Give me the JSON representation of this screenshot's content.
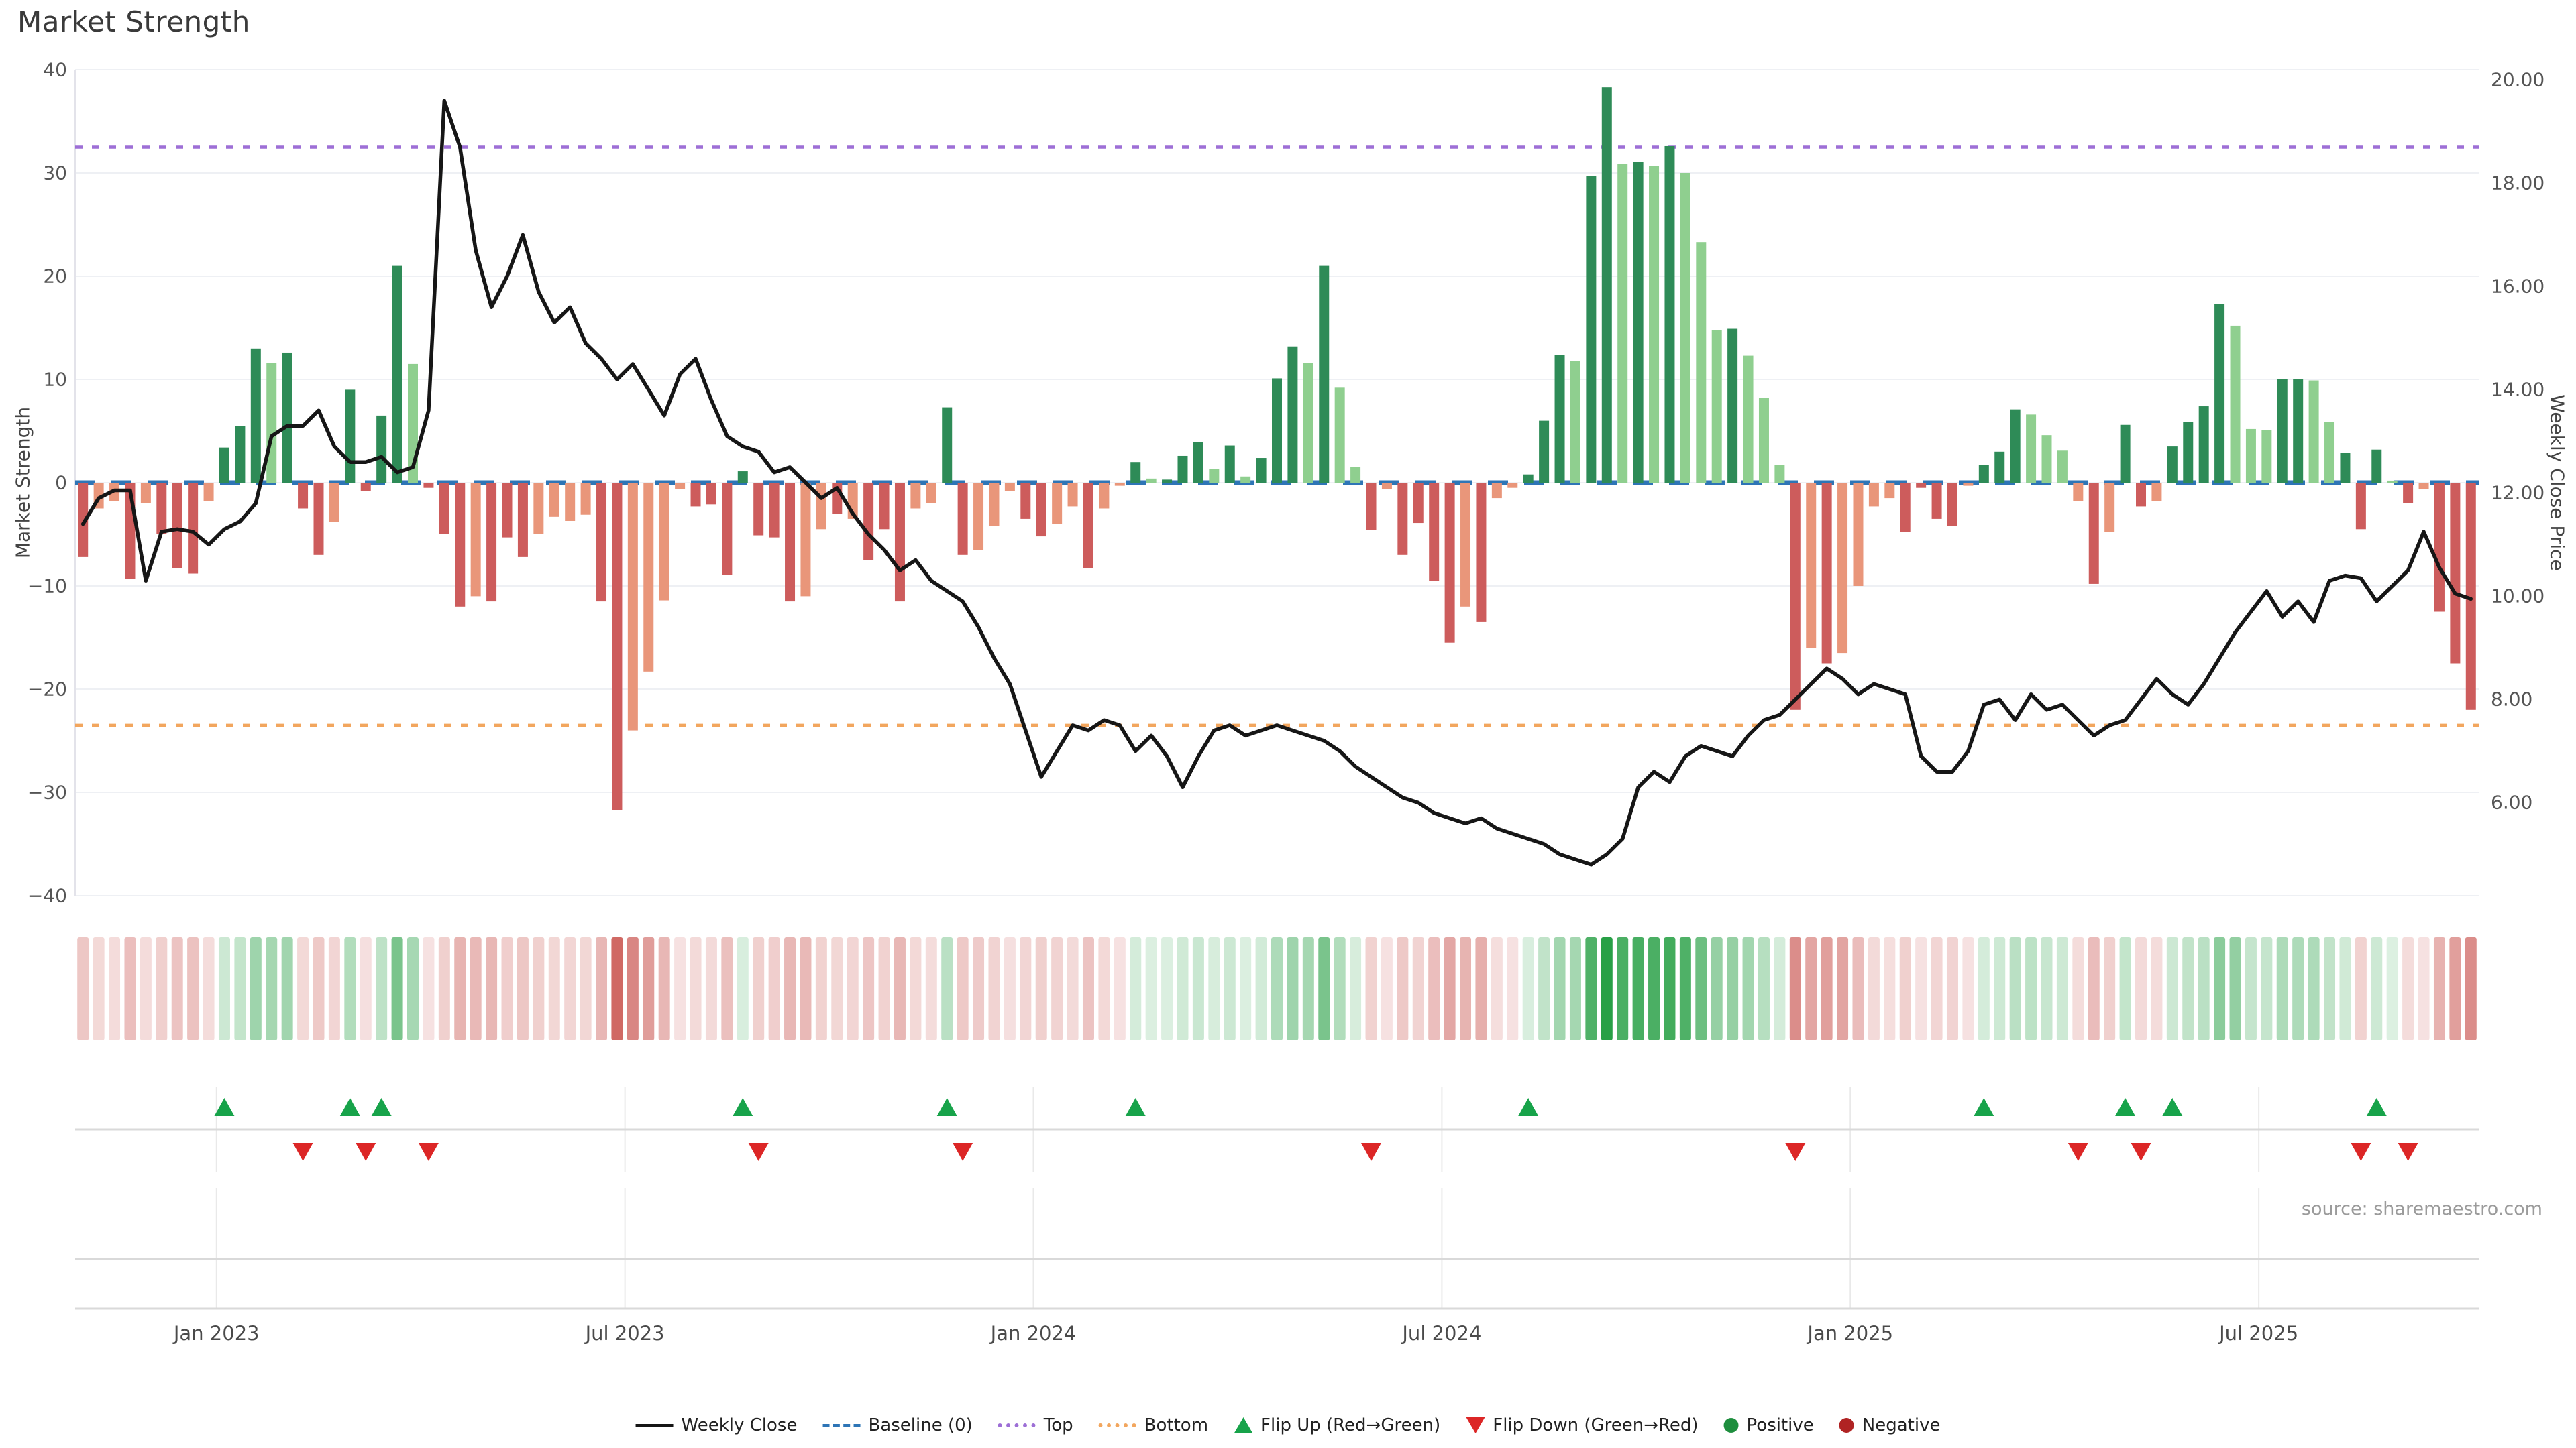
{
  "title": "Market Strength",
  "source": "source: sharemaestro.com",
  "axes": {
    "left_title": "Market Strength",
    "right_title": "Weekly Close Price",
    "left_ticks": [
      {
        "v": 40,
        "label": "40"
      },
      {
        "v": 30,
        "label": "30"
      },
      {
        "v": 20,
        "label": "20"
      },
      {
        "v": 10,
        "label": "10"
      },
      {
        "v": 0,
        "label": "0"
      },
      {
        "v": -10,
        "label": "−10"
      },
      {
        "v": -20,
        "label": "−20"
      },
      {
        "v": -30,
        "label": "−30"
      },
      {
        "v": -40,
        "label": "−40"
      }
    ],
    "right_ticks": [
      {
        "v": 20,
        "label": "20.00"
      },
      {
        "v": 18,
        "label": "18.00"
      },
      {
        "v": 16,
        "label": "16.00"
      },
      {
        "v": 14,
        "label": "14.00"
      },
      {
        "v": 12,
        "label": "12.00"
      },
      {
        "v": 10,
        "label": "10.00"
      },
      {
        "v": 8,
        "label": "8.00"
      },
      {
        "v": 6,
        "label": "6.00"
      }
    ],
    "x_ticks": [
      {
        "week": 9,
        "label": "Jan 2023"
      },
      {
        "week": 35,
        "label": "Jul 2023"
      },
      {
        "week": 61,
        "label": "Jan 2024"
      },
      {
        "week": 87,
        "label": "Jul 2024"
      },
      {
        "week": 113,
        "label": "Jan 2025"
      },
      {
        "week": 139,
        "label": "Jul 2025"
      }
    ]
  },
  "colors": {
    "bar_positive_strong": "#2e8b57",
    "bar_positive_weak": "#8fcf8f",
    "bar_negative_strong": "#cd5c5c",
    "bar_negative_weak": "#e9967a",
    "line": "#161616",
    "baseline": "#2e75b6",
    "top_line": "#9d6fd6",
    "bottom_line": "#f2a65e",
    "flip_up": "#17a34a",
    "flip_down": "#dc2626",
    "positive_dot": "#1e8e3e",
    "negative_dot": "#b02323",
    "grid": "#eef0f4",
    "axis_line": "#e3e3ea",
    "panel_line": "#d9d9d9",
    "vgrid": "#e9e9e9",
    "heat_pos": "40,160,70",
    "heat_neg": "200,80,75"
  },
  "legend": [
    {
      "label": "Weekly Close",
      "glyph": "line",
      "color": "#161616"
    },
    {
      "label": "Baseline (0)",
      "glyph": "dashed",
      "color": "#2e75b6"
    },
    {
      "label": "Top",
      "glyph": "dotted",
      "color": "#9d6fd6"
    },
    {
      "label": "Bottom",
      "glyph": "dotted",
      "color": "#f2a65e"
    },
    {
      "label": "Flip Up (Red→Green)",
      "glyph": "triangle-up",
      "color": "#17a34a"
    },
    {
      "label": "Flip Down (Green→Red)",
      "glyph": "triangle-down",
      "color": "#dc2626"
    },
    {
      "label": "Positive",
      "glyph": "circle",
      "color": "#1e8e3e"
    },
    {
      "label": "Negative",
      "glyph": "circle",
      "color": "#b02323"
    }
  ],
  "chart_data": {
    "type": "bar+line",
    "title": "Market Strength",
    "start_date": "2022-10-31",
    "interval_days": 7,
    "weeks": 153,
    "left_axis": {
      "label": "Market Strength",
      "range": [
        -44,
        44
      ],
      "gridstep": 10
    },
    "right_axis": {
      "label": "Weekly Close Price",
      "range": [
        3.4,
        21.0
      ],
      "note": "price p maps to strength s by s=(p-12.2)*5"
    },
    "reference_lines": {
      "baseline": 0,
      "top": 32.5,
      "bottom": -23.5
    },
    "series": [
      {
        "name": "Market Strength",
        "type": "bar",
        "values": [
          -7.2,
          -2.5,
          -1.8,
          -9.3,
          -2,
          -5,
          -8.3,
          -8.8,
          -1.8,
          3.4,
          5.5,
          13,
          11.6,
          12.6,
          -2.5,
          -7,
          -3.8,
          9,
          -0.8,
          6.5,
          21,
          11.5,
          -0.5,
          -5,
          -12,
          -11,
          -11.5,
          -5.3,
          -7.2,
          -5,
          -3.3,
          -3.7,
          -3.1,
          -11.5,
          -31.7,
          -24,
          -18.3,
          -11.4,
          -0.6,
          -2.3,
          -2.1,
          -8.9,
          1.1,
          -5.1,
          -5.3,
          -11.5,
          -11,
          -4.5,
          -3,
          -3.5,
          -7.5,
          -4.5,
          -11.5,
          -2.5,
          -2,
          7.3,
          -7,
          -6.5,
          -4.2,
          -0.8,
          -3.5,
          -5.2,
          -4,
          -2.3,
          -8.3,
          -2.5,
          -0.3,
          2,
          0.4,
          0.3,
          2.6,
          3.9,
          1.3,
          3.6,
          0.6,
          2.4,
          10.1,
          13.2,
          11.6,
          21,
          9.2,
          1.5,
          -4.6,
          -0.6,
          -7,
          -3.9,
          -9.5,
          -15.5,
          -12,
          -13.5,
          -1.5,
          -0.5,
          0.8,
          6,
          12.4,
          11.8,
          29.7,
          38.3,
          30.9,
          31.1,
          30.7,
          32.6,
          30,
          23.3,
          14.8,
          14.9,
          12.3,
          8.2,
          1.7,
          -22,
          -16,
          -17.5,
          -16.5,
          -10,
          -2.3,
          -1.5,
          -4.8,
          -0.5,
          -3.5,
          -4.2,
          -0.3,
          1.7,
          3,
          7.1,
          6.6,
          4.6,
          3.1,
          -1.8,
          -9.8,
          -4.8,
          5.6,
          -2.3,
          -1.8,
          3.5,
          5.9,
          7.4,
          17.3,
          15.2,
          5.2,
          5.1,
          10,
          10,
          9.9,
          5.9,
          2.9,
          -4.5,
          3.2,
          0.2,
          -2,
          -0.6,
          -12.5,
          -17.5,
          -22
        ],
        "tone_strong": [
          1,
          0,
          0,
          1,
          0,
          1,
          1,
          1,
          0,
          1,
          1,
          1,
          0,
          1,
          1,
          1,
          0,
          1,
          1,
          1,
          1,
          0,
          1,
          1,
          1,
          0,
          1,
          1,
          1,
          0,
          0,
          0,
          0,
          1,
          1,
          0,
          0,
          0,
          0,
          1,
          1,
          1,
          1,
          1,
          1,
          1,
          0,
          0,
          1,
          0,
          1,
          1,
          1,
          0,
          0,
          1,
          1,
          0,
          0,
          0,
          1,
          1,
          0,
          0,
          1,
          0,
          0,
          1,
          0,
          1,
          1,
          1,
          0,
          1,
          0,
          1,
          1,
          1,
          0,
          1,
          0,
          0,
          1,
          0,
          1,
          1,
          1,
          1,
          0,
          1,
          0,
          0,
          1,
          1,
          1,
          0,
          1,
          1,
          0,
          1,
          0,
          1,
          0,
          0,
          0,
          1,
          0,
          0,
          0,
          1,
          0,
          1,
          0,
          0,
          0,
          0,
          1,
          1,
          1,
          1,
          0,
          1,
          1,
          1,
          0,
          0,
          0,
          0,
          1,
          0,
          1,
          1,
          0,
          1,
          1,
          1,
          1,
          0,
          0,
          0,
          1,
          1,
          0,
          0,
          1,
          1,
          1,
          0,
          1,
          0,
          1,
          1,
          1
        ]
      },
      {
        "name": "Weekly Close",
        "type": "line",
        "axis": "right",
        "values": [
          11.4,
          11.9,
          12.05,
          12.05,
          10.3,
          11.25,
          11.3,
          11.25,
          11.0,
          11.3,
          11.45,
          11.8,
          13.1,
          13.3,
          13.3,
          13.6,
          12.9,
          12.6,
          12.6,
          12.7,
          12.4,
          12.5,
          13.6,
          19.6,
          18.7,
          16.7,
          15.6,
          16.2,
          17.0,
          15.9,
          15.3,
          15.6,
          14.9,
          14.6,
          14.2,
          14.5,
          14.0,
          13.5,
          14.3,
          14.6,
          13.8,
          13.1,
          12.9,
          12.8,
          12.4,
          12.5,
          12.2,
          11.9,
          12.1,
          11.6,
          11.2,
          10.9,
          10.5,
          10.7,
          10.3,
          10.1,
          9.9,
          9.4,
          8.8,
          8.3,
          7.4,
          6.5,
          7.0,
          7.5,
          7.4,
          7.6,
          7.5,
          7.0,
          7.3,
          6.9,
          6.3,
          6.9,
          7.4,
          7.5,
          7.3,
          7.4,
          7.5,
          7.4,
          7.3,
          7.2,
          7.0,
          6.7,
          6.5,
          6.3,
          6.1,
          6.0,
          5.8,
          5.7,
          5.6,
          5.7,
          5.5,
          5.4,
          5.3,
          5.2,
          5.0,
          4.9,
          4.8,
          5.0,
          5.3,
          6.3,
          6.6,
          6.4,
          6.9,
          7.1,
          7.0,
          6.9,
          7.3,
          7.6,
          7.7,
          8.0,
          8.3,
          8.6,
          8.4,
          8.1,
          8.3,
          8.2,
          8.1,
          6.9,
          6.6,
          6.6,
          7.0,
          7.9,
          8.0,
          7.6,
          8.1,
          7.8,
          7.9,
          7.6,
          7.3,
          7.5,
          7.6,
          8.0,
          8.4,
          8.1,
          7.9,
          8.3,
          8.8,
          9.3,
          9.7,
          10.1,
          9.6,
          9.9,
          9.5,
          10.3,
          10.4,
          10.35,
          9.9,
          10.2,
          10.5,
          11.25,
          10.55,
          10.05,
          9.95
        ]
      }
    ],
    "flip_up_weeks": [
      9,
      17,
      19,
      42,
      55,
      67,
      92,
      121,
      130,
      133,
      146
    ],
    "flip_down_weeks": [
      14,
      18,
      22,
      43,
      56,
      82,
      109,
      127,
      131,
      145,
      148
    ],
    "heatmap": "weekly cells colored by sign and magnitude of Market Strength bars"
  }
}
